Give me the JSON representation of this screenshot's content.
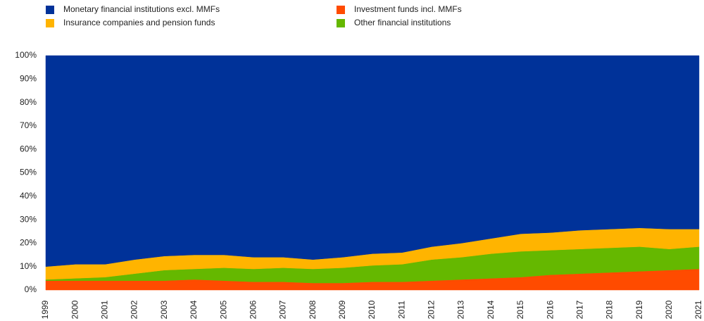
{
  "chart_data": {
    "type": "stacked_area",
    "categories": [
      "1999",
      "2000",
      "2001",
      "2002",
      "2003",
      "2004",
      "2005",
      "2006",
      "2007",
      "2008",
      "2009",
      "2010",
      "2011",
      "2012",
      "2013",
      "2014",
      "2015",
      "2016",
      "2017",
      "2018",
      "2019",
      "2020",
      "2021"
    ],
    "series": [
      {
        "name": "Investment funds incl. MMFs",
        "color": "#ff4b00",
        "values": [
          4,
          4,
          4,
          4,
          4,
          4.5,
          4,
          3.5,
          3.5,
          3,
          3,
          3.5,
          3.5,
          4,
          4.5,
          5,
          5.5,
          6.5,
          7,
          7.5,
          8,
          8.5,
          9
        ]
      },
      {
        "name": "Other financial institutions",
        "color": "#65b800",
        "values": [
          0.5,
          1,
          1.5,
          3,
          4.5,
          4.5,
          5.5,
          5.5,
          6,
          6,
          6.5,
          7,
          7.5,
          9,
          9.5,
          10.5,
          11,
          10.5,
          10.5,
          10.5,
          10.5,
          9,
          9.5
        ]
      },
      {
        "name": "Insurance companies and pension funds",
        "color": "#ffb400",
        "values": [
          5.5,
          6,
          5.5,
          6,
          6,
          6,
          5.5,
          5,
          4.5,
          4,
          4.5,
          5,
          5,
          5.5,
          6,
          6.5,
          7.5,
          7.5,
          8,
          8,
          8,
          8.5,
          7.5
        ]
      },
      {
        "name": "Monetary financial institutions excl. MMFs",
        "color": "#003299",
        "values": [
          90,
          89,
          89,
          87,
          85.5,
          85,
          85,
          86,
          86,
          87,
          86,
          84.5,
          84,
          81.5,
          80,
          78,
          76,
          75.5,
          74.5,
          74,
          73.5,
          74,
          74
        ]
      }
    ],
    "ylim": [
      0,
      100
    ],
    "yticks": [
      {
        "value": 0,
        "label": "0%"
      },
      {
        "value": 10,
        "label": "10%"
      },
      {
        "value": 20,
        "label": "20%"
      },
      {
        "value": 30,
        "label": "30%"
      },
      {
        "value": 40,
        "label": "40%"
      },
      {
        "value": 50,
        "label": "50%"
      },
      {
        "value": 60,
        "label": "60%"
      },
      {
        "value": 70,
        "label": "70%"
      },
      {
        "value": 80,
        "label": "80%"
      },
      {
        "value": 90,
        "label": "90%"
      },
      {
        "value": 100,
        "label": "100%"
      }
    ]
  }
}
